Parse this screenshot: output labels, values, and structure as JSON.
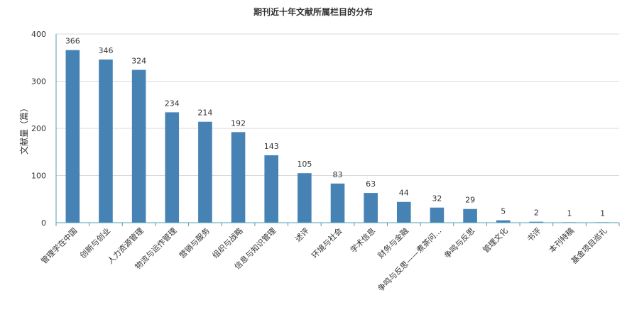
{
  "chart_data": {
    "type": "bar",
    "title": "期刊近十年文献所属栏目的分布",
    "ylabel": "文献量（篇）",
    "xlabel": "",
    "ylim": [
      0,
      400
    ],
    "yticks": [
      0,
      100,
      200,
      300,
      400
    ],
    "grid": true,
    "bar_color": "#4682b4",
    "categories": [
      "管理学在中国",
      "创新与创业",
      "人力资源管理",
      "物流与运作管理",
      "营销与服务",
      "组织与战略",
      "信息与知识管理",
      "述评",
      "环境与社会",
      "学术信息",
      "财务与金融",
      "争鸣与反思——煮茶问…",
      "争鸣与反思",
      "管理文化",
      "书评",
      "本刊特稿",
      "基金项目巡礼"
    ],
    "values": [
      366,
      346,
      324,
      234,
      214,
      192,
      143,
      105,
      83,
      63,
      44,
      32,
      29,
      5,
      2,
      1,
      1
    ]
  }
}
